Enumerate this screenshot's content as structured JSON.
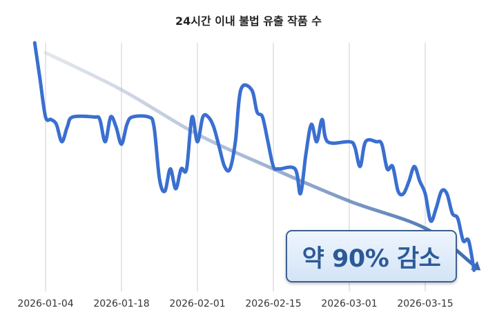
{
  "chart_data": {
    "type": "line",
    "title": "24시간 이내 불법 유출 작품 수",
    "xlabel": "",
    "ylabel": "",
    "x_ticks": [
      "2026-01-04",
      "2026-01-18",
      "2026-02-01",
      "2026-02-15",
      "2026-03-01",
      "2026-03-15"
    ],
    "grid": "vertical gridlines at x ticks",
    "y_scale_note": "no y-axis printed; values relative (start = 100)",
    "ylim": [
      0,
      100
    ],
    "series": [
      {
        "color": "#3a6fd0",
        "points": [
          [
            "2026-01-02",
            100
          ],
          [
            "2026-01-03",
            85
          ],
          [
            "2026-01-04",
            70
          ],
          [
            "2026-01-05",
            69
          ],
          [
            "2026-01-06",
            67
          ],
          [
            "2026-01-07",
            60
          ],
          [
            "2026-01-08",
            66
          ],
          [
            "2026-01-09",
            70
          ],
          [
            "2026-01-13",
            70
          ],
          [
            "2026-01-14",
            69
          ],
          [
            "2026-01-15",
            60
          ],
          [
            "2026-01-16",
            70
          ],
          [
            "2026-01-17",
            66
          ],
          [
            "2026-01-18",
            59
          ],
          [
            "2026-01-19",
            67
          ],
          [
            "2026-01-20",
            70
          ],
          [
            "2026-01-23",
            70
          ],
          [
            "2026-01-24",
            66
          ],
          [
            "2026-01-25",
            45
          ],
          [
            "2026-01-26",
            40
          ],
          [
            "2026-01-27",
            49
          ],
          [
            "2026-01-28",
            41
          ],
          [
            "2026-01-29",
            49
          ],
          [
            "2026-01-30",
            49
          ],
          [
            "2026-01-31",
            70
          ],
          [
            "2026-02-01",
            60
          ],
          [
            "2026-02-02",
            70
          ],
          [
            "2026-02-03",
            70
          ],
          [
            "2026-02-04",
            66
          ],
          [
            "2026-02-05",
            58
          ],
          [
            "2026-02-06",
            50
          ],
          [
            "2026-02-07",
            49
          ],
          [
            "2026-02-08",
            60
          ],
          [
            "2026-02-09",
            81
          ],
          [
            "2026-02-11",
            81
          ],
          [
            "2026-02-12",
            72
          ],
          [
            "2026-02-13",
            70
          ],
          [
            "2026-02-14",
            60
          ],
          [
            "2026-02-15",
            50
          ],
          [
            "2026-02-16",
            49
          ],
          [
            "2026-02-19",
            49
          ],
          [
            "2026-02-20",
            39
          ],
          [
            "2026-02-21",
            55
          ],
          [
            "2026-02-22",
            67
          ],
          [
            "2026-02-23",
            60
          ],
          [
            "2026-02-24",
            69
          ],
          [
            "2026-02-25",
            60
          ],
          [
            "2026-03-01",
            60
          ],
          [
            "2026-03-02",
            58
          ],
          [
            "2026-03-03",
            50
          ],
          [
            "2026-03-04",
            60
          ],
          [
            "2026-03-06",
            60
          ],
          [
            "2026-03-07",
            59
          ],
          [
            "2026-03-08",
            49
          ],
          [
            "2026-03-09",
            50
          ],
          [
            "2026-03-10",
            40
          ],
          [
            "2026-03-11",
            39
          ],
          [
            "2026-03-12",
            44
          ],
          [
            "2026-03-13",
            50
          ],
          [
            "2026-03-14",
            44
          ],
          [
            "2026-03-15",
            39
          ],
          [
            "2026-03-16",
            28
          ],
          [
            "2026-03-17",
            33
          ],
          [
            "2026-03-18",
            40
          ],
          [
            "2026-03-19",
            39
          ],
          [
            "2026-03-20",
            31
          ],
          [
            "2026-03-21",
            29
          ],
          [
            "2026-03-22",
            20
          ],
          [
            "2026-03-23",
            20
          ],
          [
            "2026-03-24",
            8
          ]
        ]
      }
    ],
    "trend": {
      "color": "#3d6ab0",
      "arrow": true,
      "points": [
        [
          "2026-01-04",
          96
        ],
        [
          "2026-01-18",
          81
        ],
        [
          "2026-02-01",
          63
        ],
        [
          "2026-02-15",
          49
        ],
        [
          "2026-03-01",
          36
        ],
        [
          "2026-03-15",
          25
        ],
        [
          "2026-03-24",
          10
        ]
      ]
    },
    "annotation": "약 90% 감소"
  }
}
